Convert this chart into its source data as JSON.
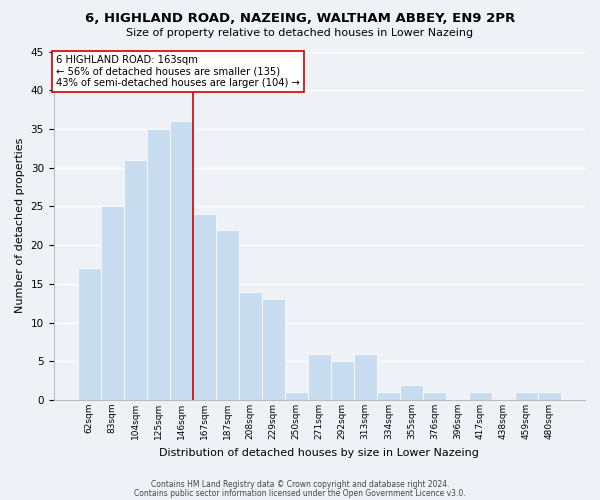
{
  "title": "6, HIGHLAND ROAD, NAZEING, WALTHAM ABBEY, EN9 2PR",
  "subtitle": "Size of property relative to detached houses in Lower Nazeing",
  "xlabel": "Distribution of detached houses by size in Lower Nazeing",
  "ylabel": "Number of detached properties",
  "bar_labels": [
    "62sqm",
    "83sqm",
    "104sqm",
    "125sqm",
    "146sqm",
    "167sqm",
    "187sqm",
    "208sqm",
    "229sqm",
    "250sqm",
    "271sqm",
    "292sqm",
    "313sqm",
    "334sqm",
    "355sqm",
    "376sqm",
    "396sqm",
    "417sqm",
    "438sqm",
    "459sqm",
    "480sqm"
  ],
  "bar_values": [
    17,
    25,
    31,
    35,
    36,
    24,
    22,
    14,
    13,
    1,
    6,
    5,
    6,
    1,
    2,
    1,
    0,
    1,
    0,
    1,
    1
  ],
  "bar_color": "#c8ddef",
  "bar_edge_color": "#ffffff",
  "vline_color": "#cc0000",
  "annotation_title": "6 HIGHLAND ROAD: 163sqm",
  "annotation_line1": "← 56% of detached houses are smaller (135)",
  "annotation_line2": "43% of semi-detached houses are larger (104) →",
  "annotation_box_color": "#ffffff",
  "annotation_box_edge": "#cc0000",
  "ylim": [
    0,
    45
  ],
  "yticks": [
    0,
    5,
    10,
    15,
    20,
    25,
    30,
    35,
    40,
    45
  ],
  "footer1": "Contains HM Land Registry data © Crown copyright and database right 2024.",
  "footer2": "Contains public sector information licensed under the Open Government Licence v3.0.",
  "background_color": "#eef2f7",
  "grid_color": "#ffffff"
}
